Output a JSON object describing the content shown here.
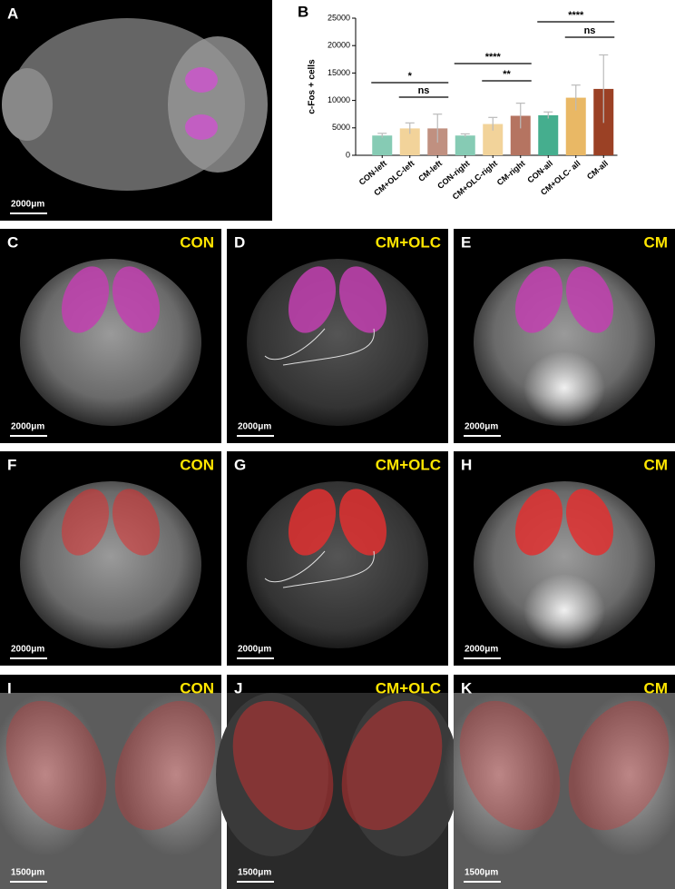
{
  "chart_data": {
    "type": "bar",
    "label": "B",
    "ylabel": "c-Fos + cells",
    "categories": [
      "CON-left",
      "CM+OLC-left",
      "CM-left",
      "CON-right",
      "CM+OLC-right",
      "CM-right",
      "CON-all",
      "CM+OLC- all",
      "CM-all"
    ],
    "values": [
      3600,
      4900,
      4900,
      3600,
      5700,
      7200,
      7300,
      10500,
      12100
    ],
    "errors": [
      400,
      1000,
      2600,
      300,
      1200,
      2300,
      600,
      2300,
      6200
    ],
    "colors": [
      "#86cbb4",
      "#f2d39a",
      "#c09080",
      "#86cbb4",
      "#f2d39a",
      "#b57461",
      "#45ae8e",
      "#e9b865",
      "#9b4125"
    ],
    "ylim": [
      0,
      25000
    ],
    "yticks": [
      0,
      5000,
      10000,
      15000,
      20000,
      25000
    ],
    "annotations": [
      "*",
      "ns",
      "****",
      "**",
      "****",
      "ns"
    ]
  },
  "panels": [
    {
      "letter": "A",
      "scale": "2000μm"
    },
    {
      "letter": "C",
      "condition": "CON",
      "scale": "2000μm"
    },
    {
      "letter": "D",
      "condition": "CM+OLC",
      "scale": "2000μm"
    },
    {
      "letter": "E",
      "condition": "CM",
      "scale": "2000μm"
    },
    {
      "letter": "F",
      "condition": "CON",
      "scale": "2000μm"
    },
    {
      "letter": "G",
      "condition": "CM+OLC",
      "scale": "2000μm"
    },
    {
      "letter": "H",
      "condition": "CM",
      "scale": "2000μm"
    },
    {
      "letter": "I",
      "condition": "CON",
      "scale": "1500μm"
    },
    {
      "letter": "J",
      "condition": "CM+OLC",
      "scale": "1500μm"
    },
    {
      "letter": "K",
      "condition": "CM",
      "scale": "1500μm"
    }
  ]
}
